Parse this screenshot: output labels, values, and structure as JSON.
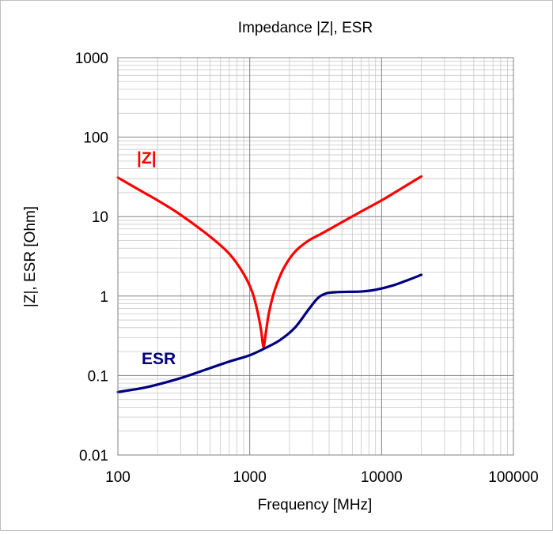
{
  "chart_data": {
    "type": "line",
    "title": "Impedance |Z|,  ESR",
    "xlabel": "Frequency [MHz]",
    "ylabel": "|Z|, ESR [Ohm]",
    "x_scale": "log",
    "y_scale": "log",
    "xlim": [
      100,
      100000
    ],
    "ylim": [
      0.01,
      1000
    ],
    "x_tick_labels": [
      "100",
      "1000",
      "10000",
      "100000"
    ],
    "y_tick_labels": [
      "0.01",
      "0.1",
      "1",
      "10",
      "100",
      "1000"
    ],
    "grid": true,
    "colors": {
      "z": "#ff0000",
      "esr": "#000080"
    },
    "series": [
      {
        "name": "|Z|",
        "color": "#ff0000",
        "x": [
          100,
          150,
          200,
          300,
          500,
          700,
          900,
          1050,
          1150,
          1220,
          1270,
          1320,
          1400,
          1550,
          1800,
          2200,
          2800,
          3500,
          5000,
          7000,
          10000,
          15000,
          20000
        ],
        "y": [
          31,
          21,
          16,
          10.5,
          5.6,
          3.4,
          1.9,
          1.1,
          0.62,
          0.37,
          0.23,
          0.33,
          0.62,
          1.2,
          2.2,
          3.6,
          5.0,
          6.1,
          8.5,
          11.6,
          16,
          24,
          32
        ]
      },
      {
        "name": "ESR",
        "color": "#000080",
        "x": [
          100,
          150,
          200,
          300,
          500,
          700,
          1000,
          1300,
          1700,
          2200,
          2800,
          3300,
          3800,
          4500,
          5500,
          7000,
          9000,
          12000,
          16000,
          20000
        ],
        "y": [
          0.062,
          0.069,
          0.077,
          0.093,
          0.124,
          0.15,
          0.18,
          0.22,
          0.28,
          0.4,
          0.68,
          0.95,
          1.08,
          1.12,
          1.13,
          1.14,
          1.2,
          1.35,
          1.6,
          1.85
        ]
      }
    ]
  }
}
